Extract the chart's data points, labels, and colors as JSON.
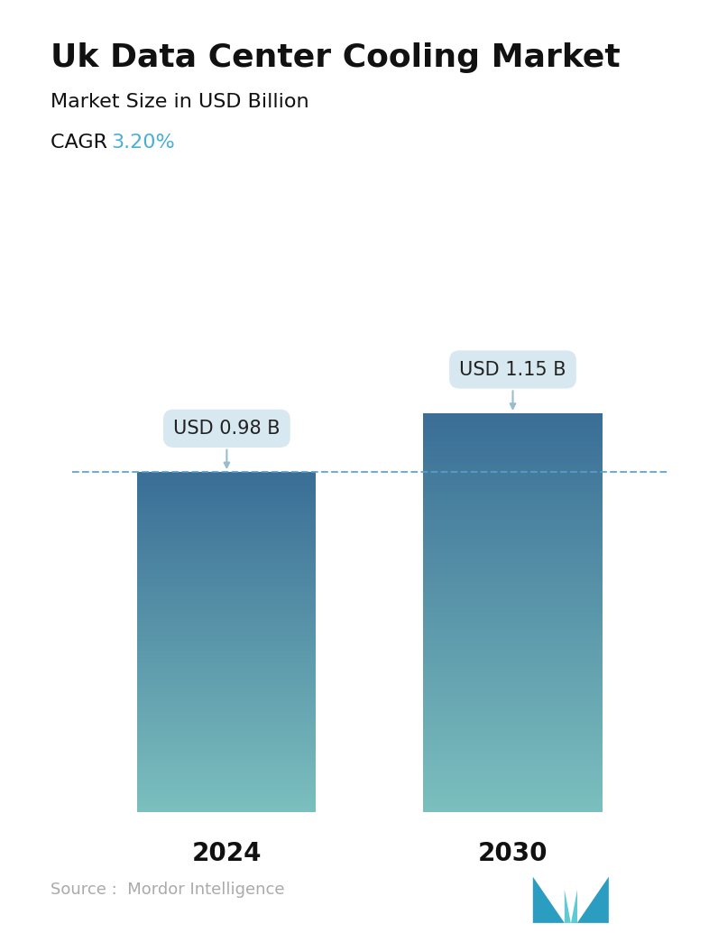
{
  "title": "Uk Data Center Cooling Market",
  "subtitle": "Market Size in USD Billion",
  "cagr_label": "CAGR",
  "cagr_value": "3.20%",
  "cagr_color": "#4AAFD5",
  "categories": [
    "2024",
    "2030"
  ],
  "values": [
    0.98,
    1.15
  ],
  "bar_labels": [
    "USD 0.98 B",
    "USD 1.15 B"
  ],
  "bar_top_color": "#3A6E96",
  "bar_bottom_color": "#7BBFBE",
  "dashed_line_color": "#5A9EC9",
  "source_text": "Source :  Mordor Intelligence",
  "source_color": "#aaaaaa",
  "background_color": "#ffffff",
  "title_fontsize": 26,
  "subtitle_fontsize": 16,
  "cagr_fontsize": 16,
  "bar_label_fontsize": 15,
  "xlabel_fontsize": 20,
  "source_fontsize": 13,
  "annotation_box_color": "#D8E8F0",
  "annotation_text_color": "#222222",
  "logo_color_left": "#2B9DC0",
  "logo_color_mid": "#5ECAD4",
  "logo_color_right": "#2B9DC0"
}
